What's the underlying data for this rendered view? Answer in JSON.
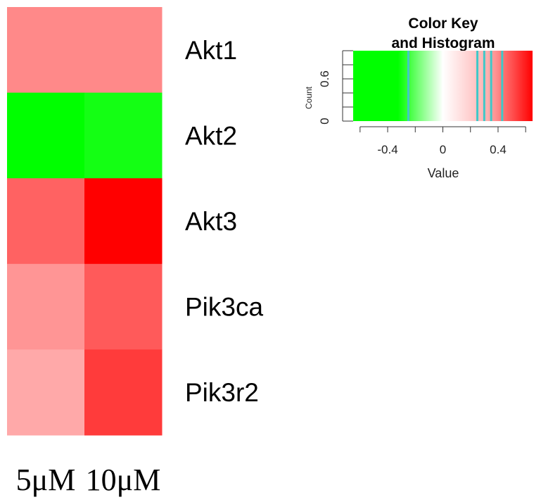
{
  "chart_data": {
    "type": "heatmap",
    "rows": [
      "Akt1",
      "Akt2",
      "Akt3",
      "Pik3ca",
      "Pik3r2"
    ],
    "columns": [
      "5μM",
      "10μM"
    ],
    "values": [
      [
        0.3,
        0.3
      ],
      [
        -0.65,
        -0.6
      ],
      [
        0.4,
        0.65
      ],
      [
        0.27,
        0.42
      ],
      [
        0.22,
        0.5
      ]
    ],
    "color_scale": {
      "min": -0.65,
      "max": 0.65,
      "low": "#00ff00",
      "mid": "#ffffff",
      "high": "#ff0000"
    },
    "color_key": {
      "title_line1": "Color Key",
      "title_line2": "and Histogram",
      "xlabel": "Value",
      "ylabel": "Count",
      "xticks": [
        -0.4,
        0,
        0.4
      ],
      "xtick_labels": [
        "-0.4",
        "0",
        "0.4"
      ],
      "yticks": [
        0,
        0.6
      ],
      "ytick_labels": [
        "0",
        "0.6"
      ],
      "histogram_lines": [
        -0.25,
        0.25,
        0.3,
        0.35,
        0.43
      ]
    }
  }
}
